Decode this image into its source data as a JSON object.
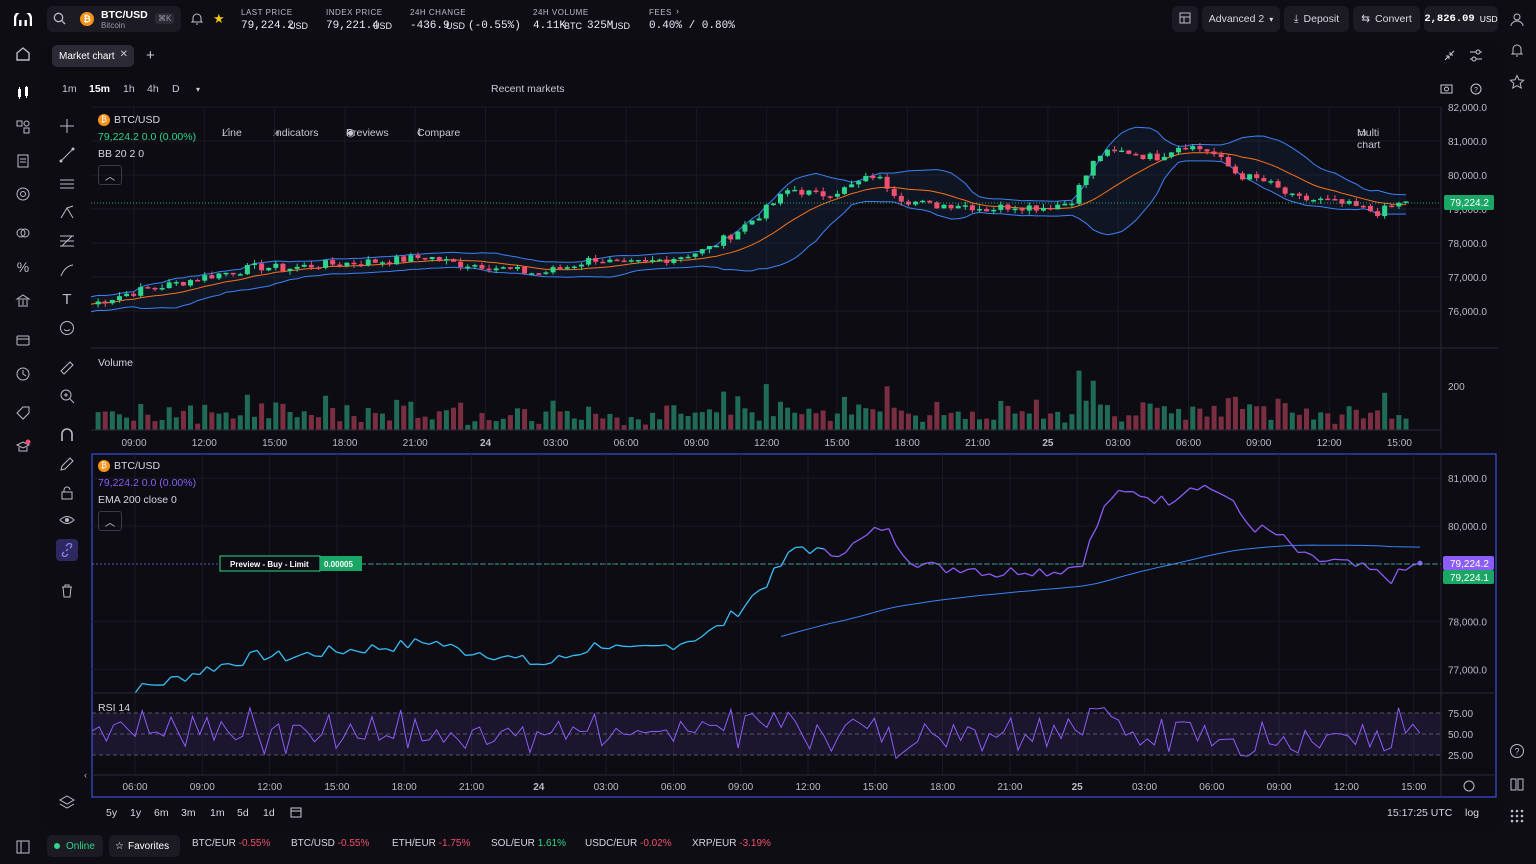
{
  "header": {
    "pair": "BTC/USD",
    "pair_sub": "Bitcoin",
    "shortcut": "⌘K",
    "last_price_label": "LAST PRICE",
    "last_price": "79,224.2",
    "last_price_unit": "USD",
    "index_price_label": "INDEX PRICE",
    "index_price": "79,221.4",
    "index_price_unit": "USD",
    "change_label": "24H CHANGE",
    "change": "-436.9",
    "change_unit": "USD",
    "change_pct": "(-0.55%)",
    "volume_label": "24H VOLUME",
    "volume_btc": "4.11K",
    "volume_btc_unit": "BTC",
    "volume_usd": "325M",
    "volume_usd_unit": "USD",
    "fees_label": "FEES",
    "fees": "0.40% / 0.80%",
    "mode": "Advanced 2",
    "deposit": "Deposit",
    "convert": "Convert",
    "balance": "2,826.09",
    "balance_unit": "USD"
  },
  "tabs": [
    {
      "label": "Market chart"
    }
  ],
  "toolbar": {
    "intervals": [
      "1m",
      "15m",
      "1h",
      "4h",
      "D"
    ],
    "active_interval": "15m",
    "line": "Line",
    "indicators": "Indicators",
    "previews": "Previews",
    "compare": "Compare",
    "recent": "Recent markets",
    "multi": "Multi chart"
  },
  "chart_top": {
    "symbol": "BTC/USD",
    "ohlc": "79,224.2",
    "change": "0.0 (0.00%)",
    "indicator": "BB 20 2 0",
    "volume_label": "Volume",
    "price_tag": "79,224.2",
    "vol_tick": "200",
    "y_ticks": [
      "82,000.0",
      "81,000.0",
      "80,000.0",
      "79,000.0",
      "78,000.0",
      "77,000.0",
      "76,000.0"
    ],
    "x_ticks": [
      "09:00",
      "12:00",
      "15:00",
      "18:00",
      "21:00",
      "24",
      "03:00",
      "06:00",
      "09:00",
      "12:00",
      "15:00",
      "18:00",
      "21:00",
      "25",
      "03:00",
      "06:00",
      "09:00",
      "12:00",
      "15:00"
    ]
  },
  "chart_bottom": {
    "symbol": "BTC/USD",
    "ohlc": "79,224.2",
    "change": "0.0 (0.00%)",
    "indicator": "EMA 200 close 0",
    "rsi_label": "RSI 14",
    "preview_label": "Preview - Buy - Limit",
    "preview_qty": "0.00005",
    "tag1": "79,224.2",
    "tag2": "79,224.1",
    "y_ticks": [
      "81,000.0",
      "80,000.0",
      "78,000.0",
      "77,000.0"
    ],
    "rsi_ticks": [
      "75.00",
      "50.00",
      "25.00"
    ],
    "x_ticks": [
      "06:00",
      "09:00",
      "12:00",
      "15:00",
      "18:00",
      "21:00",
      "24",
      "03:00",
      "06:00",
      "09:00",
      "12:00",
      "15:00",
      "18:00",
      "21:00",
      "25",
      "03:00",
      "06:00",
      "09:00",
      "12:00",
      "15:00"
    ]
  },
  "ranges": [
    "5y",
    "1y",
    "6m",
    "3m",
    "1m",
    "5d",
    "1d"
  ],
  "time": "15:17:25 UTC",
  "scale": "log",
  "footer": {
    "status": "Online",
    "favorites": "Favorites",
    "tickers": [
      {
        "pair": "BTC/EUR",
        "chg": "-0.55%"
      },
      {
        "pair": "BTC/USD",
        "chg": "-0.55%"
      },
      {
        "pair": "ETH/EUR",
        "chg": "-1.75%"
      },
      {
        "pair": "SOL/EUR",
        "chg": "1.61%"
      },
      {
        "pair": "USDC/EUR",
        "chg": "-0.02%"
      },
      {
        "pair": "XRP/EUR",
        "chg": "-3.19%"
      }
    ]
  },
  "colors": {
    "up": "#2fd58a",
    "down": "#f0506e",
    "accent": "#8b5cf6",
    "bb": "#3b82f6",
    "ema": "#f97316"
  },
  "chart_data": {
    "type": "line",
    "series": [
      {
        "values": [
          76200,
          76450,
          76650,
          76800,
          77000,
          77150,
          77300,
          77250,
          77350,
          77400,
          77450,
          77500,
          77600,
          77400,
          77350,
          77200,
          77100,
          77300,
          77550,
          77350,
          77450,
          77600,
          77800,
          78300,
          78900,
          79600,
          79400,
          79600,
          80000,
          79300,
          79100,
          79150,
          79000,
          79100,
          79050,
          79200,
          80600,
          80700,
          80500,
          80900,
          80700,
          80000,
          79800,
          79300,
          79250,
          79100,
          78900,
          79224.2
        ]
      }
    ]
  }
}
